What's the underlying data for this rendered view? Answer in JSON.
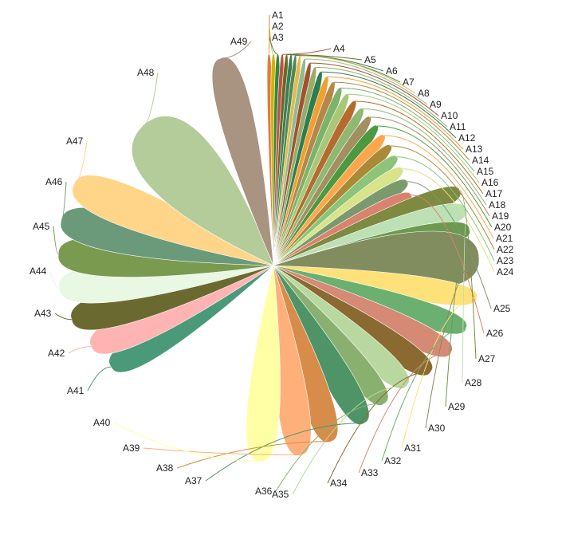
{
  "chart_data": {
    "type": "pie",
    "style": "rose / petal",
    "colors": {
      "background": "#ffffff",
      "petal_edge": "#ffffff",
      "label": "#222222"
    },
    "slices": [
      {
        "label": "A1",
        "value": 100,
        "angle": 1.2,
        "color": "#e07b39"
      },
      {
        "label": "A2",
        "value": 100,
        "angle": 1.2,
        "color": "#d4b106"
      },
      {
        "label": "A3",
        "value": 100,
        "angle": 1.2,
        "color": "#2e8b3a"
      },
      {
        "label": "A4",
        "value": 100,
        "angle": 1.2,
        "color": "#c0504d"
      },
      {
        "label": "A5",
        "value": 100,
        "angle": 1.2,
        "color": "#6b6b1e"
      },
      {
        "label": "A6",
        "value": 100,
        "angle": 1.2,
        "color": "#3d7a5a"
      },
      {
        "label": "A7",
        "value": 100,
        "angle": 1.2,
        "color": "#4f8a4f"
      },
      {
        "label": "A8",
        "value": 100,
        "angle": 1.2,
        "color": "#e6b84c"
      },
      {
        "label": "A9",
        "value": 100,
        "angle": 1.5,
        "color": "#8fbc8f"
      },
      {
        "label": "A10",
        "value": 100,
        "angle": 1.6,
        "color": "#a0522d"
      },
      {
        "label": "A11",
        "value": 100,
        "angle": 1.7,
        "color": "#9aaa6b"
      },
      {
        "label": "A12",
        "value": 100,
        "angle": 1.9,
        "color": "#2f7d4f"
      },
      {
        "label": "A13",
        "value": 100,
        "angle": 2.1,
        "color": "#f0a030"
      },
      {
        "label": "A14",
        "value": 100,
        "angle": 2.3,
        "color": "#b5884a"
      },
      {
        "label": "A15",
        "value": 100,
        "angle": 2.5,
        "color": "#7cb36b"
      },
      {
        "label": "A16",
        "value": 100,
        "angle": 2.7,
        "color": "#a8c878"
      },
      {
        "label": "A17",
        "value": 100,
        "angle": 3.0,
        "color": "#b56b2e"
      },
      {
        "label": "A18",
        "value": 100,
        "angle": 3.2,
        "color": "#8fb872"
      },
      {
        "label": "A19",
        "value": 100,
        "angle": 3.4,
        "color": "#a39060"
      },
      {
        "label": "A20",
        "value": 100,
        "angle": 3.6,
        "color": "#4c9a3f"
      },
      {
        "label": "A21",
        "value": 100,
        "angle": 3.8,
        "color": "#ffa64d"
      },
      {
        "label": "A22",
        "value": 100,
        "angle": 4.0,
        "color": "#aa8a36"
      },
      {
        "label": "A23",
        "value": 100,
        "angle": 4.2,
        "color": "#8cc47a"
      },
      {
        "label": "A24",
        "value": 100,
        "angle": 4.5,
        "color": "#d8e38a"
      },
      {
        "label": "A25",
        "value": 100,
        "angle": 4.8,
        "color": "#7a9a6e"
      },
      {
        "label": "A26",
        "value": 100,
        "angle": 5.0,
        "color": "#d9826e"
      },
      {
        "label": "A27",
        "value": 100,
        "angle": 5.3,
        "color": "#7d8a40"
      },
      {
        "label": "A28",
        "value": 100,
        "angle": 5.6,
        "color": "#bde0b5"
      },
      {
        "label": "A29",
        "value": 100,
        "angle": 5.8,
        "color": "#6b9a50"
      },
      {
        "label": "A30",
        "value": 200,
        "angle": 16.0,
        "color": "#818d5e"
      },
      {
        "label": "A31",
        "value": 100,
        "angle": 6.4,
        "color": "#ffe17a"
      },
      {
        "label": "A32",
        "value": 100,
        "angle": 6.8,
        "color": "#6bb070"
      },
      {
        "label": "A33",
        "value": 100,
        "angle": 7.0,
        "color": "#d48a74"
      },
      {
        "label": "A34",
        "value": 100,
        "angle": 7.3,
        "color": "#8a6a30"
      },
      {
        "label": "A35",
        "value": 100,
        "angle": 7.6,
        "color": "#b8d8a0"
      },
      {
        "label": "A36",
        "value": 100,
        "angle": 7.8,
        "color": "#8ab070"
      },
      {
        "label": "A37",
        "value": 100,
        "angle": 8.0,
        "color": "#4f9466"
      },
      {
        "label": "A38",
        "value": 100,
        "angle": 8.2,
        "color": "#d88c4a"
      },
      {
        "label": "A39",
        "value": 100,
        "angle": 8.4,
        "color": "#ffb07a"
      },
      {
        "label": "A40",
        "value": 100,
        "angle": 8.6,
        "color": "#ffffa6"
      },
      {
        "label": "A41",
        "value": 100,
        "angle": 8.8,
        "color": "#4a9a7a"
      },
      {
        "label": "A42",
        "value": 100,
        "angle": 9.0,
        "color": "#ffb3b3"
      },
      {
        "label": "A43",
        "value": 100,
        "angle": 9.2,
        "color": "#6a6a30"
      },
      {
        "label": "A44",
        "value": 100,
        "angle": 9.4,
        "color": "#e8f8e2"
      },
      {
        "label": "A45",
        "value": 100,
        "angle": 9.6,
        "color": "#7a9a50"
      },
      {
        "label": "A46",
        "value": 100,
        "angle": 9.8,
        "color": "#6a9a7a"
      },
      {
        "label": "A47",
        "value": 100,
        "angle": 10.0,
        "color": "#ffd58a"
      },
      {
        "label": "A48",
        "value": 100,
        "angle": 10.2,
        "color": "#b3cc99"
      },
      {
        "label": "A49",
        "value": 100,
        "angle": 10.4,
        "color": "#a89480"
      }
    ],
    "label_order": [
      "A1",
      "A2",
      "A3",
      "A4",
      "A5",
      "A6",
      "A7",
      "A8",
      "A9",
      "A10",
      "A11",
      "A12",
      "A13",
      "A14",
      "A15",
      "A16",
      "A17",
      "A18",
      "A19",
      "A20",
      "A21",
      "A22",
      "A23",
      "A24",
      "A25",
      "A26",
      "A27",
      "A28",
      "A29",
      "A30",
      "A31",
      "A32",
      "A33",
      "A34",
      "A35",
      "A36",
      "A37",
      "A38",
      "A39",
      "A40",
      "A41",
      "A42",
      "A43",
      "A44",
      "A45",
      "A46",
      "A47",
      "A48",
      "A49"
    ],
    "legend": "none",
    "grid": false
  }
}
